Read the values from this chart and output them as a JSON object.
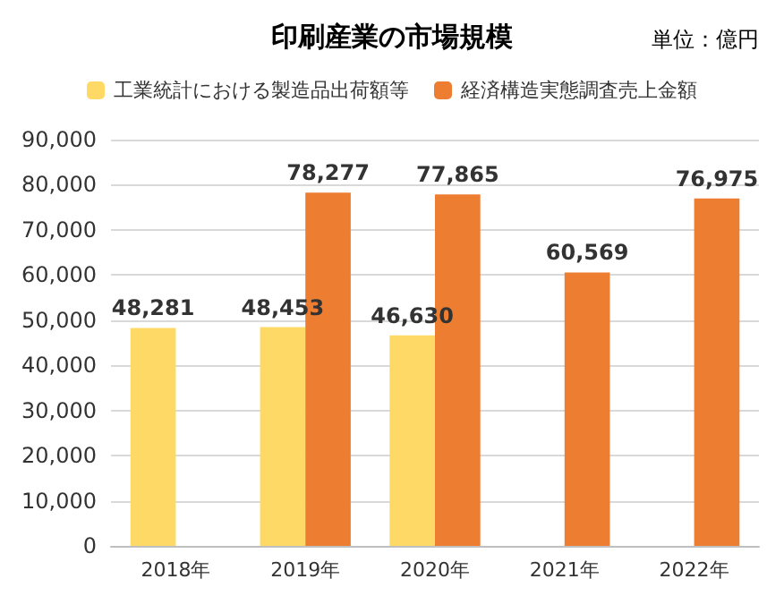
{
  "chart_data": {
    "type": "bar",
    "title": "印刷産業の市場規模",
    "annotations": [
      "単位：億円"
    ],
    "categories": [
      "2018年",
      "2019年",
      "2020年",
      "2021年",
      "2022年"
    ],
    "series": [
      {
        "name": "工業統計における製造品出荷額等",
        "color": "#ffd966",
        "values": [
          48281,
          48453,
          46630,
          null,
          null
        ],
        "value_labels": [
          "48,281",
          "48,453",
          "46,630",
          null,
          null
        ]
      },
      {
        "name": "経済構造実態調査売上金額",
        "color": "#ed7d31",
        "values": [
          null,
          78277,
          77865,
          60569,
          76975
        ],
        "value_labels": [
          null,
          "78,277",
          "77,865",
          "60,569",
          "76,975"
        ]
      }
    ],
    "ylim": [
      0,
      90000
    ],
    "yticks": [
      {
        "value": 0,
        "label": "0"
      },
      {
        "value": 10000,
        "label": "10,000"
      },
      {
        "value": 20000,
        "label": "20,000"
      },
      {
        "value": 30000,
        "label": "30,000"
      },
      {
        "value": 40000,
        "label": "40,000"
      },
      {
        "value": 50000,
        "label": "50,000"
      },
      {
        "value": 60000,
        "label": "60,000"
      },
      {
        "value": 70000,
        "label": "70,000"
      },
      {
        "value": 80000,
        "label": "80,000"
      },
      {
        "value": 90000,
        "label": "90,000"
      }
    ],
    "grid": "y",
    "legend": "top"
  }
}
